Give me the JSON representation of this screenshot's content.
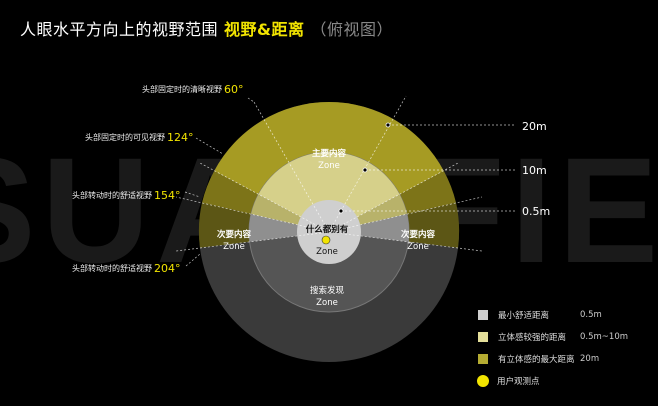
{
  "title": {
    "main": "人眼水平方向上的视野范围",
    "highlight": "视野&距离",
    "sub": "（俯视图）"
  },
  "watermark": "VISUAL FIELD",
  "angle_labels": [
    {
      "text": "头部固定时的清晰视野",
      "degree": "60°"
    },
    {
      "text": "头部固定时的可见视野",
      "degree": "124°"
    },
    {
      "text": "头部转动时的舒适视野",
      "degree": "154°"
    },
    {
      "text": "头部转动时的舒适视野",
      "degree": "204°"
    }
  ],
  "distance_labels": [
    "20m",
    "10m",
    "0.5m"
  ],
  "zones": {
    "center": {
      "title": "什么都别有",
      "sub": "Zone"
    },
    "main": {
      "title": "主要内容",
      "sub": "Zone"
    },
    "secondary_left": {
      "title": "次要内容",
      "sub": "Zone"
    },
    "secondary_right": {
      "title": "次要内容",
      "sub": "Zone"
    },
    "search": {
      "title": "搜索发现",
      "sub": "Zone"
    }
  },
  "legend": [
    {
      "label": "最小舒适距离",
      "value": "0.5m",
      "color": "#cfcfcf"
    },
    {
      "label": "立体感较强的距离",
      "value": "0.5m~10m",
      "color": "#e4df9a"
    },
    {
      "label": "有立体感的最大距离",
      "value": "20m",
      "color": "#b5ac32"
    },
    {
      "label": "用户观测点",
      "value": "",
      "color": "#f2e400"
    }
  ],
  "colors": {
    "accent": "#f2e400",
    "outer_olive": "#a69b23",
    "mid_cream": "#d6d08a",
    "inner_grey": "#cfcfcf"
  }
}
